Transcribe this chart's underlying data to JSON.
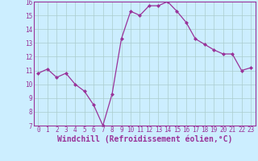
{
  "x": [
    0,
    1,
    2,
    3,
    4,
    5,
    6,
    7,
    8,
    9,
    10,
    11,
    12,
    13,
    14,
    15,
    16,
    17,
    18,
    19,
    20,
    21,
    22,
    23
  ],
  "y": [
    10.8,
    11.1,
    10.5,
    10.8,
    10.0,
    9.5,
    8.5,
    7.0,
    9.3,
    13.3,
    15.3,
    15.0,
    15.7,
    15.7,
    16.0,
    15.3,
    14.5,
    13.3,
    12.9,
    12.5,
    12.2,
    12.2,
    11.0,
    11.2
  ],
  "line_color": "#993399",
  "marker": "D",
  "marker_size": 2,
  "bg_color": "#cceeff",
  "grid_color": "#aacccc",
  "xlabel": "Windchill (Refroidissement éolien,°C)",
  "ylim": [
    7,
    16
  ],
  "yticks": [
    7,
    8,
    9,
    10,
    11,
    12,
    13,
    14,
    15,
    16
  ],
  "xticks": [
    0,
    1,
    2,
    3,
    4,
    5,
    6,
    7,
    8,
    9,
    10,
    11,
    12,
    13,
    14,
    15,
    16,
    17,
    18,
    19,
    20,
    21,
    22,
    23
  ],
  "tick_color": "#993399",
  "tick_fontsize": 5.5,
  "xlabel_fontsize": 7.0,
  "spine_color": "#993399",
  "line_width": 0.9
}
